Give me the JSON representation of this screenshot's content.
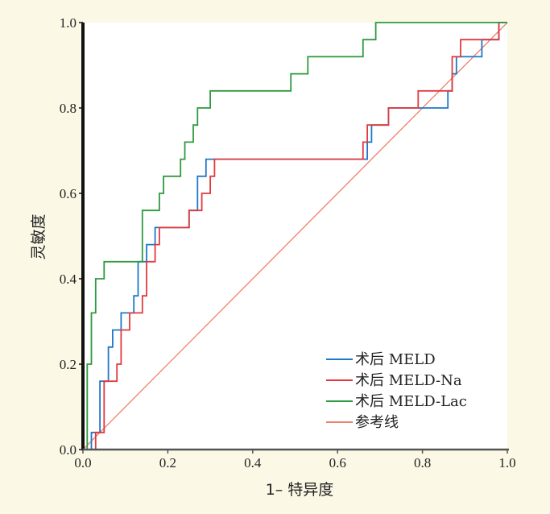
{
  "chart_data": {
    "type": "line",
    "title": "",
    "xlabel": "1– 特异度",
    "ylabel": "灵敏度",
    "xlim": [
      0,
      1
    ],
    "ylim": [
      0,
      1
    ],
    "xticks": [
      0.0,
      0.2,
      0.4,
      0.6,
      0.8,
      1.0
    ],
    "yticks": [
      0.0,
      0.2,
      0.4,
      0.6,
      0.8,
      1.0
    ],
    "xtick_labels": [
      "0.0",
      "0.2",
      "0.4",
      "0.6",
      "0.8",
      "1.0"
    ],
    "ytick_labels": [
      "0.0",
      "0.2",
      "0.4",
      "0.6",
      "0.8",
      "1.0"
    ],
    "grid": false,
    "legend_position": "bottom-right",
    "series": [
      {
        "name": "术后 MELD",
        "color": "#1f78c8",
        "points": [
          [
            0,
            0
          ],
          [
            0.02,
            0
          ],
          [
            0.02,
            0.04
          ],
          [
            0.04,
            0.04
          ],
          [
            0.04,
            0.16
          ],
          [
            0.06,
            0.16
          ],
          [
            0.06,
            0.24
          ],
          [
            0.07,
            0.24
          ],
          [
            0.07,
            0.28
          ],
          [
            0.09,
            0.28
          ],
          [
            0.09,
            0.32
          ],
          [
            0.12,
            0.32
          ],
          [
            0.12,
            0.36
          ],
          [
            0.13,
            0.36
          ],
          [
            0.13,
            0.44
          ],
          [
            0.15,
            0.44
          ],
          [
            0.15,
            0.48
          ],
          [
            0.17,
            0.48
          ],
          [
            0.17,
            0.52
          ],
          [
            0.25,
            0.52
          ],
          [
            0.25,
            0.56
          ],
          [
            0.27,
            0.56
          ],
          [
            0.27,
            0.64
          ],
          [
            0.29,
            0.64
          ],
          [
            0.29,
            0.68
          ],
          [
            0.67,
            0.68
          ],
          [
            0.67,
            0.72
          ],
          [
            0.68,
            0.72
          ],
          [
            0.68,
            0.76
          ],
          [
            0.72,
            0.76
          ],
          [
            0.72,
            0.8
          ],
          [
            0.86,
            0.8
          ],
          [
            0.86,
            0.84
          ],
          [
            0.87,
            0.84
          ],
          [
            0.87,
            0.88
          ],
          [
            0.88,
            0.88
          ],
          [
            0.88,
            0.92
          ],
          [
            0.94,
            0.92
          ],
          [
            0.94,
            0.96
          ],
          [
            0.98,
            0.96
          ],
          [
            0.98,
            1
          ],
          [
            1,
            1
          ]
        ]
      },
      {
        "name": "术后 MELD-Na",
        "color": "#e03a3e",
        "points": [
          [
            0,
            0
          ],
          [
            0.03,
            0
          ],
          [
            0.03,
            0.04
          ],
          [
            0.05,
            0.04
          ],
          [
            0.05,
            0.16
          ],
          [
            0.08,
            0.16
          ],
          [
            0.08,
            0.2
          ],
          [
            0.09,
            0.2
          ],
          [
            0.09,
            0.28
          ],
          [
            0.11,
            0.28
          ],
          [
            0.11,
            0.32
          ],
          [
            0.14,
            0.32
          ],
          [
            0.14,
            0.36
          ],
          [
            0.15,
            0.36
          ],
          [
            0.15,
            0.44
          ],
          [
            0.17,
            0.44
          ],
          [
            0.17,
            0.48
          ],
          [
            0.18,
            0.48
          ],
          [
            0.18,
            0.52
          ],
          [
            0.25,
            0.52
          ],
          [
            0.25,
            0.56
          ],
          [
            0.28,
            0.56
          ],
          [
            0.28,
            0.6
          ],
          [
            0.3,
            0.6
          ],
          [
            0.3,
            0.64
          ],
          [
            0.31,
            0.64
          ],
          [
            0.31,
            0.68
          ],
          [
            0.66,
            0.68
          ],
          [
            0.66,
            0.72
          ],
          [
            0.67,
            0.72
          ],
          [
            0.67,
            0.76
          ],
          [
            0.72,
            0.76
          ],
          [
            0.72,
            0.8
          ],
          [
            0.79,
            0.8
          ],
          [
            0.79,
            0.84
          ],
          [
            0.87,
            0.84
          ],
          [
            0.87,
            0.92
          ],
          [
            0.89,
            0.92
          ],
          [
            0.89,
            0.96
          ],
          [
            0.98,
            0.96
          ],
          [
            0.98,
            1
          ],
          [
            1,
            1
          ]
        ]
      },
      {
        "name": "术后 MELD-Lac",
        "color": "#2e9a3e",
        "points": [
          [
            0,
            0
          ],
          [
            0.01,
            0
          ],
          [
            0.01,
            0.2
          ],
          [
            0.02,
            0.2
          ],
          [
            0.02,
            0.32
          ],
          [
            0.03,
            0.32
          ],
          [
            0.03,
            0.4
          ],
          [
            0.05,
            0.4
          ],
          [
            0.05,
            0.44
          ],
          [
            0.14,
            0.44
          ],
          [
            0.14,
            0.56
          ],
          [
            0.18,
            0.56
          ],
          [
            0.18,
            0.6
          ],
          [
            0.19,
            0.6
          ],
          [
            0.19,
            0.64
          ],
          [
            0.23,
            0.64
          ],
          [
            0.23,
            0.68
          ],
          [
            0.24,
            0.68
          ],
          [
            0.24,
            0.72
          ],
          [
            0.26,
            0.72
          ],
          [
            0.26,
            0.76
          ],
          [
            0.27,
            0.76
          ],
          [
            0.27,
            0.8
          ],
          [
            0.3,
            0.8
          ],
          [
            0.3,
            0.84
          ],
          [
            0.49,
            0.84
          ],
          [
            0.49,
            0.88
          ],
          [
            0.53,
            0.88
          ],
          [
            0.53,
            0.92
          ],
          [
            0.66,
            0.92
          ],
          [
            0.66,
            0.96
          ],
          [
            0.69,
            0.96
          ],
          [
            0.69,
            1
          ],
          [
            1,
            1
          ]
        ]
      },
      {
        "name": "参考线",
        "color": "#f07f6b",
        "points": [
          [
            0,
            0
          ],
          [
            1,
            1
          ]
        ]
      }
    ]
  }
}
